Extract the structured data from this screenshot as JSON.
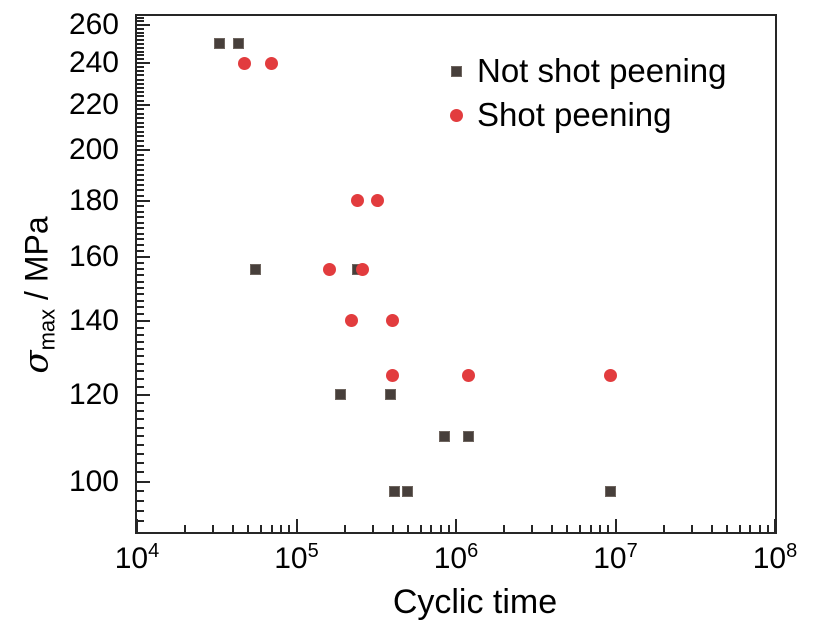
{
  "chart_data": {
    "type": "scatter",
    "title": "",
    "xlabel": "Cyclic time",
    "ylabel": {
      "symbol": "σ",
      "subscript": "max",
      "suffix": " / MPa"
    },
    "x_scale": "log",
    "y_scale": "log",
    "xlim": [
      10000,
      100000000
    ],
    "ylim": [
      90,
      265
    ],
    "x_major_tick_exponents": [
      4,
      5,
      6,
      7,
      8
    ],
    "x_minor_tick_multiples": [
      2,
      3,
      4,
      5,
      6,
      7,
      8,
      9
    ],
    "y_major_ticks": [
      100,
      120,
      140,
      160,
      180,
      200,
      220,
      240,
      260
    ],
    "y_minor_tick_step": 2,
    "grid": "off",
    "legend_position": "top-right-inside",
    "series": [
      {
        "name": "Not shot peening",
        "marker": "square",
        "color": "#473f3b",
        "points": [
          [
            33000,
            250
          ],
          [
            43000,
            250
          ],
          [
            55000,
            156
          ],
          [
            240000,
            156
          ],
          [
            190000,
            120
          ],
          [
            390000,
            120
          ],
          [
            850000,
            110
          ],
          [
            1200000,
            110
          ],
          [
            410000,
            98
          ],
          [
            500000,
            98
          ],
          [
            9300000,
            98
          ]
        ]
      },
      {
        "name": "Shot peening",
        "marker": "circle",
        "color": "#e23c3e",
        "points": [
          [
            47000,
            240
          ],
          [
            70000,
            240
          ],
          [
            240000,
            180
          ],
          [
            320000,
            180
          ],
          [
            160000,
            156
          ],
          [
            260000,
            156
          ],
          [
            220000,
            140
          ],
          [
            400000,
            140
          ],
          [
            400000,
            125
          ],
          [
            1200000,
            125
          ],
          [
            9300000,
            125
          ]
        ]
      }
    ]
  },
  "colors": {
    "frame": "#262626",
    "text": "#000000",
    "background": "#ffffff"
  }
}
